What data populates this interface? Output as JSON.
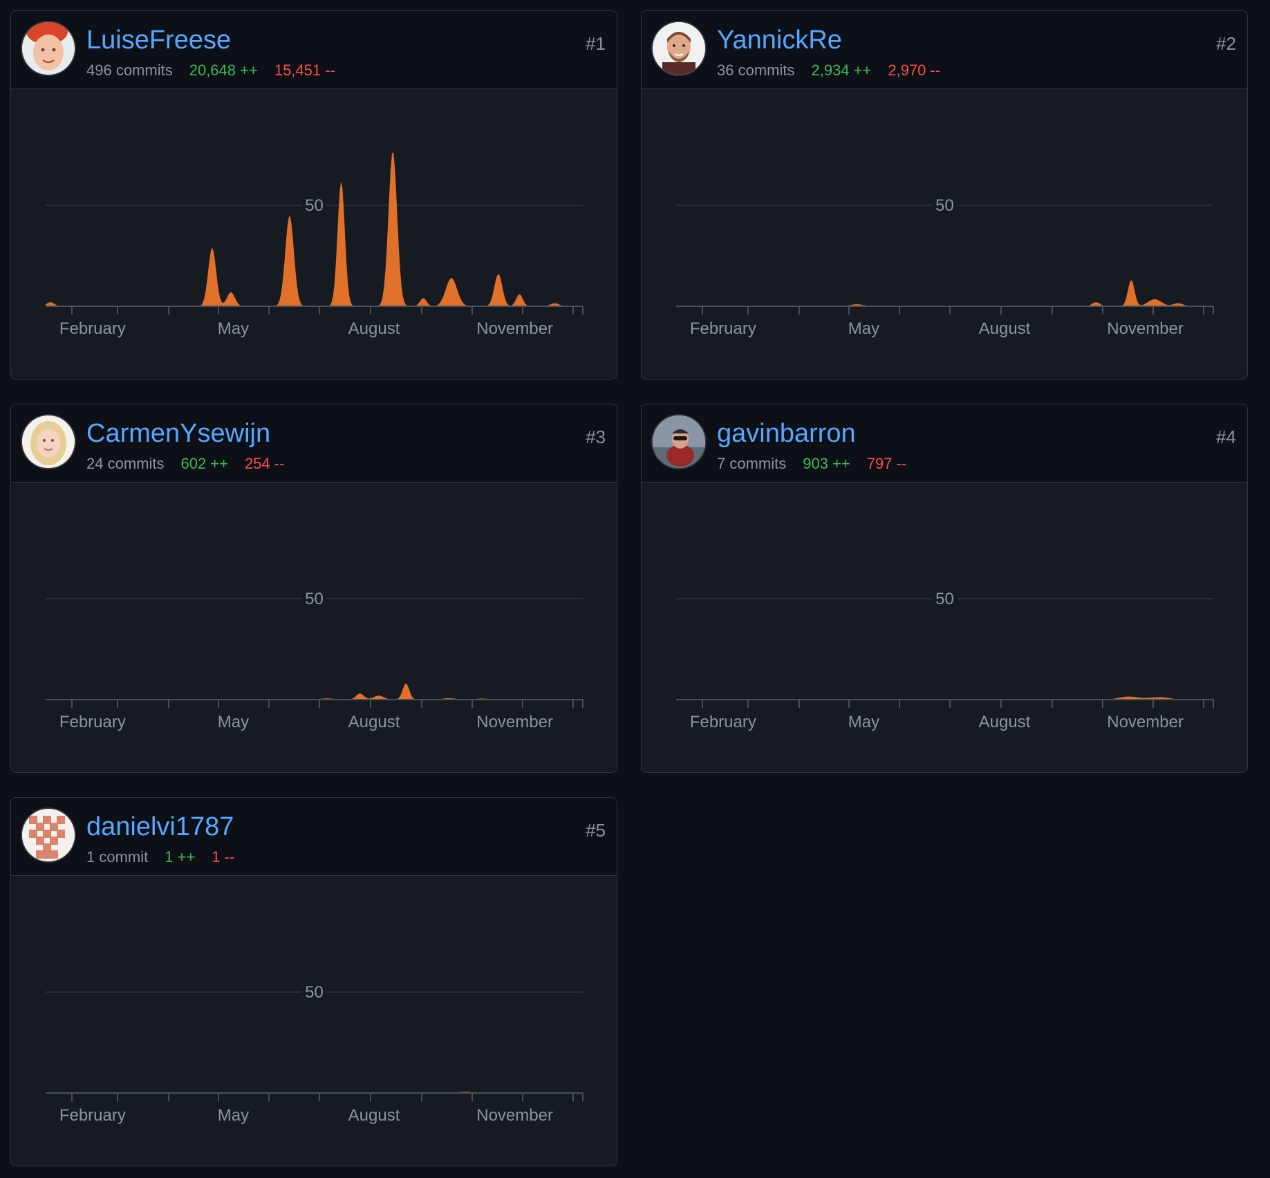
{
  "contributors": [
    {
      "rank": "#1",
      "username": "LuiseFreese",
      "commits": "496 commits",
      "additions": "20,648 ++",
      "deletions": "15,451 --",
      "avatar": "red-haired-woman-avatar",
      "chart_data": {
        "type": "area",
        "x_range": [
          1,
          12.45
        ],
        "y_tick": "50",
        "y_tick_value": 50,
        "ylim": [
          0,
          50
        ],
        "x_labels": [
          {
            "label": "February",
            "x": 2
          },
          {
            "label": "May",
            "x": 5
          },
          {
            "label": "August",
            "x": 8
          },
          {
            "label": "November",
            "x": 11
          }
        ],
        "peaks": [
          {
            "x": 1.1,
            "value": 2,
            "width": 0.12
          },
          {
            "x": 4.55,
            "value": 29,
            "width": 0.12
          },
          {
            "x": 4.95,
            "value": 7,
            "width": 0.12
          },
          {
            "x": 6.2,
            "value": 45,
            "width": 0.13
          },
          {
            "x": 7.3,
            "value": 62,
            "width": 0.11
          },
          {
            "x": 8.4,
            "value": 77,
            "width": 0.13
          },
          {
            "x": 9.05,
            "value": 4,
            "width": 0.1
          },
          {
            "x": 9.65,
            "value": 14,
            "width": 0.17
          },
          {
            "x": 10.65,
            "value": 16,
            "width": 0.12
          },
          {
            "x": 11.1,
            "value": 6,
            "width": 0.1
          },
          {
            "x": 11.85,
            "value": 1.5,
            "width": 0.13
          }
        ]
      }
    },
    {
      "rank": "#2",
      "username": "YannickRe",
      "commits": "36 commits",
      "additions": "2,934 ++",
      "deletions": "2,970 --",
      "avatar": "bearded-man-avatar",
      "chart_data": {
        "type": "area",
        "x_range": [
          1,
          12.45
        ],
        "y_tick": "50",
        "y_tick_value": 50,
        "ylim": [
          0,
          50
        ],
        "x_labels": [
          {
            "label": "February",
            "x": 2
          },
          {
            "label": "May",
            "x": 5
          },
          {
            "label": "August",
            "x": 8
          },
          {
            "label": "November",
            "x": 11
          }
        ],
        "peaks": [
          {
            "x": 4.85,
            "value": 1,
            "width": 0.2
          },
          {
            "x": 9.95,
            "value": 2,
            "width": 0.12
          },
          {
            "x": 10.7,
            "value": 13,
            "width": 0.1
          },
          {
            "x": 11.2,
            "value": 3.5,
            "width": 0.2
          },
          {
            "x": 11.7,
            "value": 1.5,
            "width": 0.15
          }
        ]
      }
    },
    {
      "rank": "#3",
      "username": "CarmenYsewijn",
      "commits": "24 commits",
      "additions": "602 ++",
      "deletions": "254 --",
      "avatar": "blonde-woman-avatar",
      "chart_data": {
        "type": "area",
        "x_range": [
          1,
          12.45
        ],
        "y_tick": "50",
        "y_tick_value": 50,
        "ylim": [
          0,
          50
        ],
        "x_labels": [
          {
            "label": "February",
            "x": 2
          },
          {
            "label": "May",
            "x": 5
          },
          {
            "label": "August",
            "x": 8
          },
          {
            "label": "November",
            "x": 11
          }
        ],
        "peaks": [
          {
            "x": 7.0,
            "value": 0.6,
            "width": 0.2
          },
          {
            "x": 7.7,
            "value": 3,
            "width": 0.12
          },
          {
            "x": 8.1,
            "value": 2,
            "width": 0.15
          },
          {
            "x": 8.68,
            "value": 8,
            "width": 0.1
          },
          {
            "x": 9.6,
            "value": 0.7,
            "width": 0.2
          },
          {
            "x": 10.3,
            "value": 0.5,
            "width": 0.2
          }
        ]
      }
    },
    {
      "rank": "#4",
      "username": "gavinbarron",
      "commits": "7 commits",
      "additions": "903 ++",
      "deletions": "797 --",
      "avatar": "hiker-man-avatar",
      "chart_data": {
        "type": "area",
        "x_range": [
          1,
          12.45
        ],
        "y_tick": "50",
        "y_tick_value": 50,
        "ylim": [
          0,
          50
        ],
        "x_labels": [
          {
            "label": "February",
            "x": 2
          },
          {
            "label": "May",
            "x": 5
          },
          {
            "label": "August",
            "x": 8
          },
          {
            "label": "November",
            "x": 11
          }
        ],
        "peaks": [
          {
            "x": 10.65,
            "value": 1.5,
            "width": 0.3
          },
          {
            "x": 11.3,
            "value": 1.2,
            "width": 0.3
          }
        ]
      }
    },
    {
      "rank": "#5",
      "username": "danielvi1787",
      "commits": "1 commit",
      "additions": "1 ++",
      "deletions": "1 --",
      "avatar": "pixel-identicon-avatar",
      "chart_data": {
        "type": "area",
        "x_range": [
          1,
          12.45
        ],
        "y_tick": "50",
        "y_tick_value": 50,
        "ylim": [
          0,
          50
        ],
        "x_labels": [
          {
            "label": "February",
            "x": 2
          },
          {
            "label": "May",
            "x": 5
          },
          {
            "label": "August",
            "x": 8
          },
          {
            "label": "November",
            "x": 11
          }
        ],
        "peaks": [
          {
            "x": 9.95,
            "value": 0.6,
            "width": 0.2
          }
        ]
      }
    }
  ],
  "colors": {
    "area": "#e0702a",
    "grid": "#30363d",
    "axis": "#484f58",
    "label": "#8b949e",
    "link": "#58a6ff",
    "additions": "#3fb950",
    "deletions": "#f85149"
  }
}
